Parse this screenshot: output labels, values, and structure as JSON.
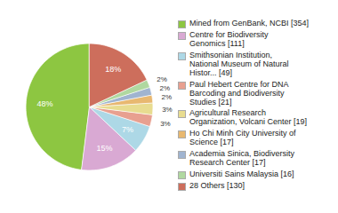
{
  "chart_data": {
    "type": "pie",
    "categories": [
      "Mined from GenBank, NCBI [354]",
      "Centre for Biodiversity\nGenomics [111]",
      "Smithsonian Institution,\nNational Museum of Natural\nHistor... [49]",
      "Paul Hebert Centre for DNA\nBarcoding and Biodiversity\nStudies [21]",
      "Agricultural Research\nOrganization, Volcani Center [19]",
      "Ho Chi Minh City University of\nScience [17]",
      "Academia Sinica, Biodiversity\nResearch Center [17]",
      "Universiti Sains Malaysia [16]",
      "28 Others [130]"
    ],
    "values": [
      48,
      15,
      7,
      3,
      3,
      2,
      2,
      2,
      18
    ],
    "value_labels": [
      "48%",
      "15%",
      "7%",
      "3%",
      "3%",
      "2%",
      "2%",
      "2%",
      "18%"
    ],
    "colors": [
      "#8DC641",
      "#D9A9D3",
      "#ADD8E6",
      "#E8A090",
      "#E8DC90",
      "#E8B870",
      "#A0B4D0",
      "#B0D8A0",
      "#CD6E5C"
    ],
    "data_labels": true,
    "legend": "right"
  }
}
